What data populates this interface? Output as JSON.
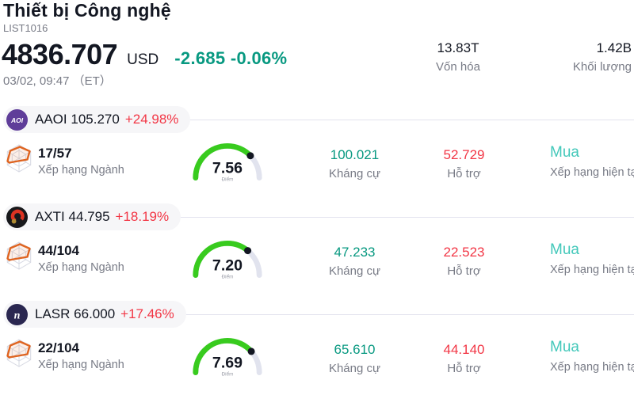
{
  "header": {
    "title": "Thiết bị Công nghệ",
    "subtitle": "LIST1016",
    "price": "4836.707",
    "currency": "USD",
    "change": "-2.685 -0.06%",
    "datetime": "03/02, 09:47 （ET）",
    "stats": {
      "market_cap": {
        "value": "13.83T",
        "label": "Vốn hóa"
      },
      "volume": {
        "value": "1.42B",
        "label": "Khối lượng"
      }
    }
  },
  "colors": {
    "up_teal": "#089981",
    "down_red": "#f23645",
    "rating_teal": "#43c8ba",
    "gauge_green": "#38cb1e",
    "gauge_track": "#e1e3ee",
    "pill_bg": "#f6f6f8"
  },
  "rows": [
    {
      "ticker": "AAOI",
      "price": "105.270",
      "change_pct": "+24.98%",
      "logo_icon": "aaoi-logo",
      "rank": "17/57",
      "rank_label": "Xếp hạng Ngành",
      "score": 7.56,
      "score_display": "7.56",
      "score_label": "Điểm",
      "resistance": "100.021",
      "resistance_label": "Kháng cự",
      "support": "52.729",
      "support_label": "Hỗ trợ",
      "rating": "Mua",
      "rating_label": "Xếp hạng hiện tại"
    },
    {
      "ticker": "AXTI",
      "price": "44.795",
      "change_pct": "+18.19%",
      "logo_icon": "axti-logo",
      "rank": "44/104",
      "rank_label": "Xếp hạng Ngành",
      "score": 7.2,
      "score_display": "7.20",
      "score_label": "Điểm",
      "resistance": "47.233",
      "resistance_label": "Kháng cự",
      "support": "22.523",
      "support_label": "Hỗ trợ",
      "rating": "Mua",
      "rating_label": "Xếp hạng hiện tại"
    },
    {
      "ticker": "LASR",
      "price": "66.000",
      "change_pct": "+17.46%",
      "logo_icon": "lasr-logo",
      "rank": "22/104",
      "rank_label": "Xếp hạng Ngành",
      "score": 7.69,
      "score_display": "7.69",
      "score_label": "Điểm",
      "resistance": "65.610",
      "resistance_label": "Kháng cự",
      "support": "44.140",
      "support_label": "Hỗ trợ",
      "rating": "Mua",
      "rating_label": "Xếp hạng hiện tại"
    }
  ]
}
